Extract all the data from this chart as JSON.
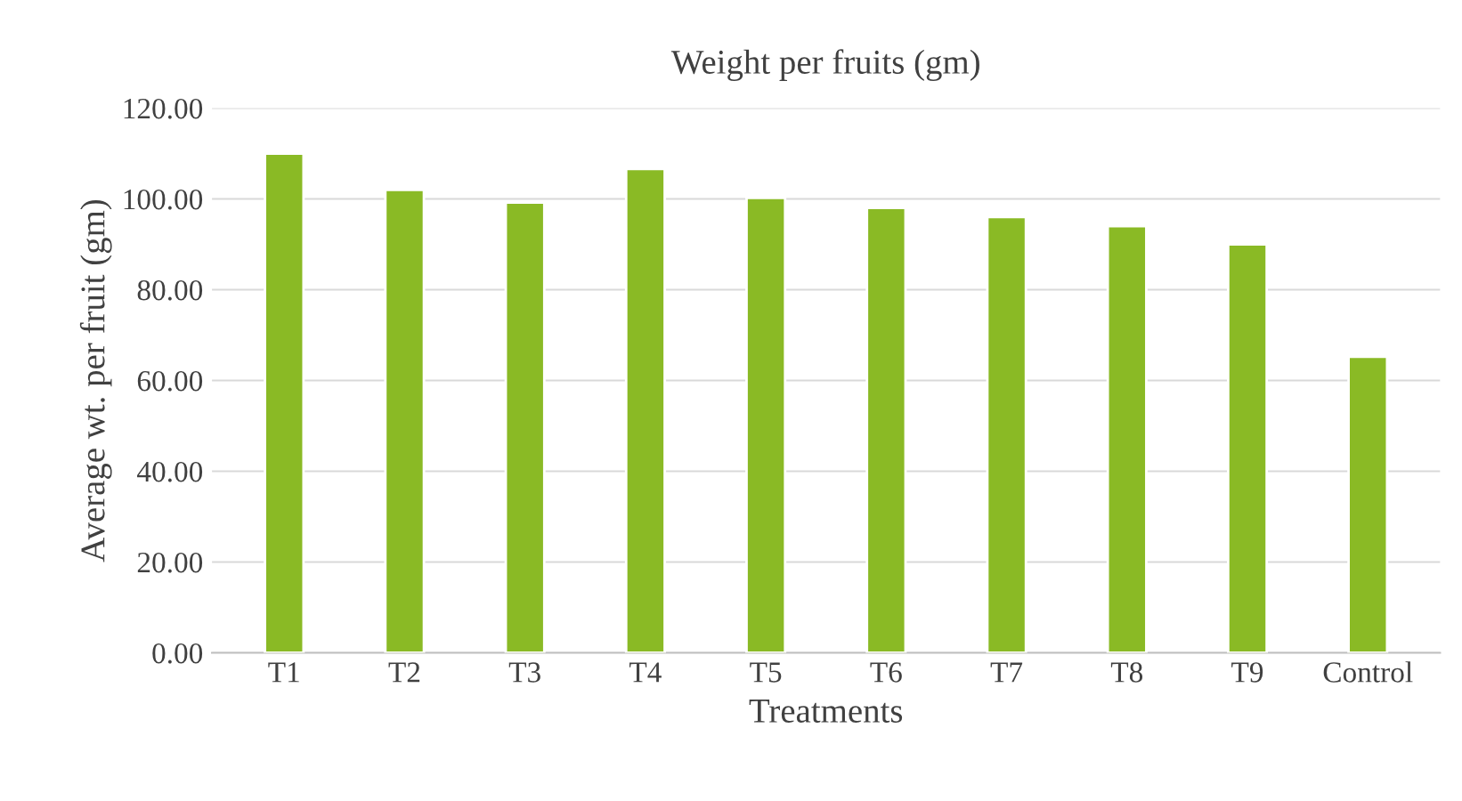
{
  "chart_data": {
    "type": "bar",
    "title": "Weight per fruits (gm)",
    "xlabel": "Treatments",
    "ylabel": "Average wt. per fruit (gm)",
    "categories": [
      "T1",
      "T2",
      "T3",
      "T4",
      "T5",
      "T6",
      "T7",
      "T8",
      "T9",
      "Control"
    ],
    "values": [
      110,
      102,
      99.2,
      106.6,
      100.2,
      98,
      96,
      94,
      90,
      65.2
    ],
    "color": "#8aba25",
    "ylim": [
      0,
      120
    ],
    "yticks": [
      {
        "value": 0,
        "label": "0.00"
      },
      {
        "value": 20,
        "label": "20.00"
      },
      {
        "value": 40,
        "label": "40.00"
      },
      {
        "value": 60,
        "label": "60.00"
      },
      {
        "value": 80,
        "label": "80.00"
      },
      {
        "value": 100,
        "label": "100.00"
      },
      {
        "value": 120,
        "label": "120.00"
      }
    ],
    "grid": "y"
  }
}
